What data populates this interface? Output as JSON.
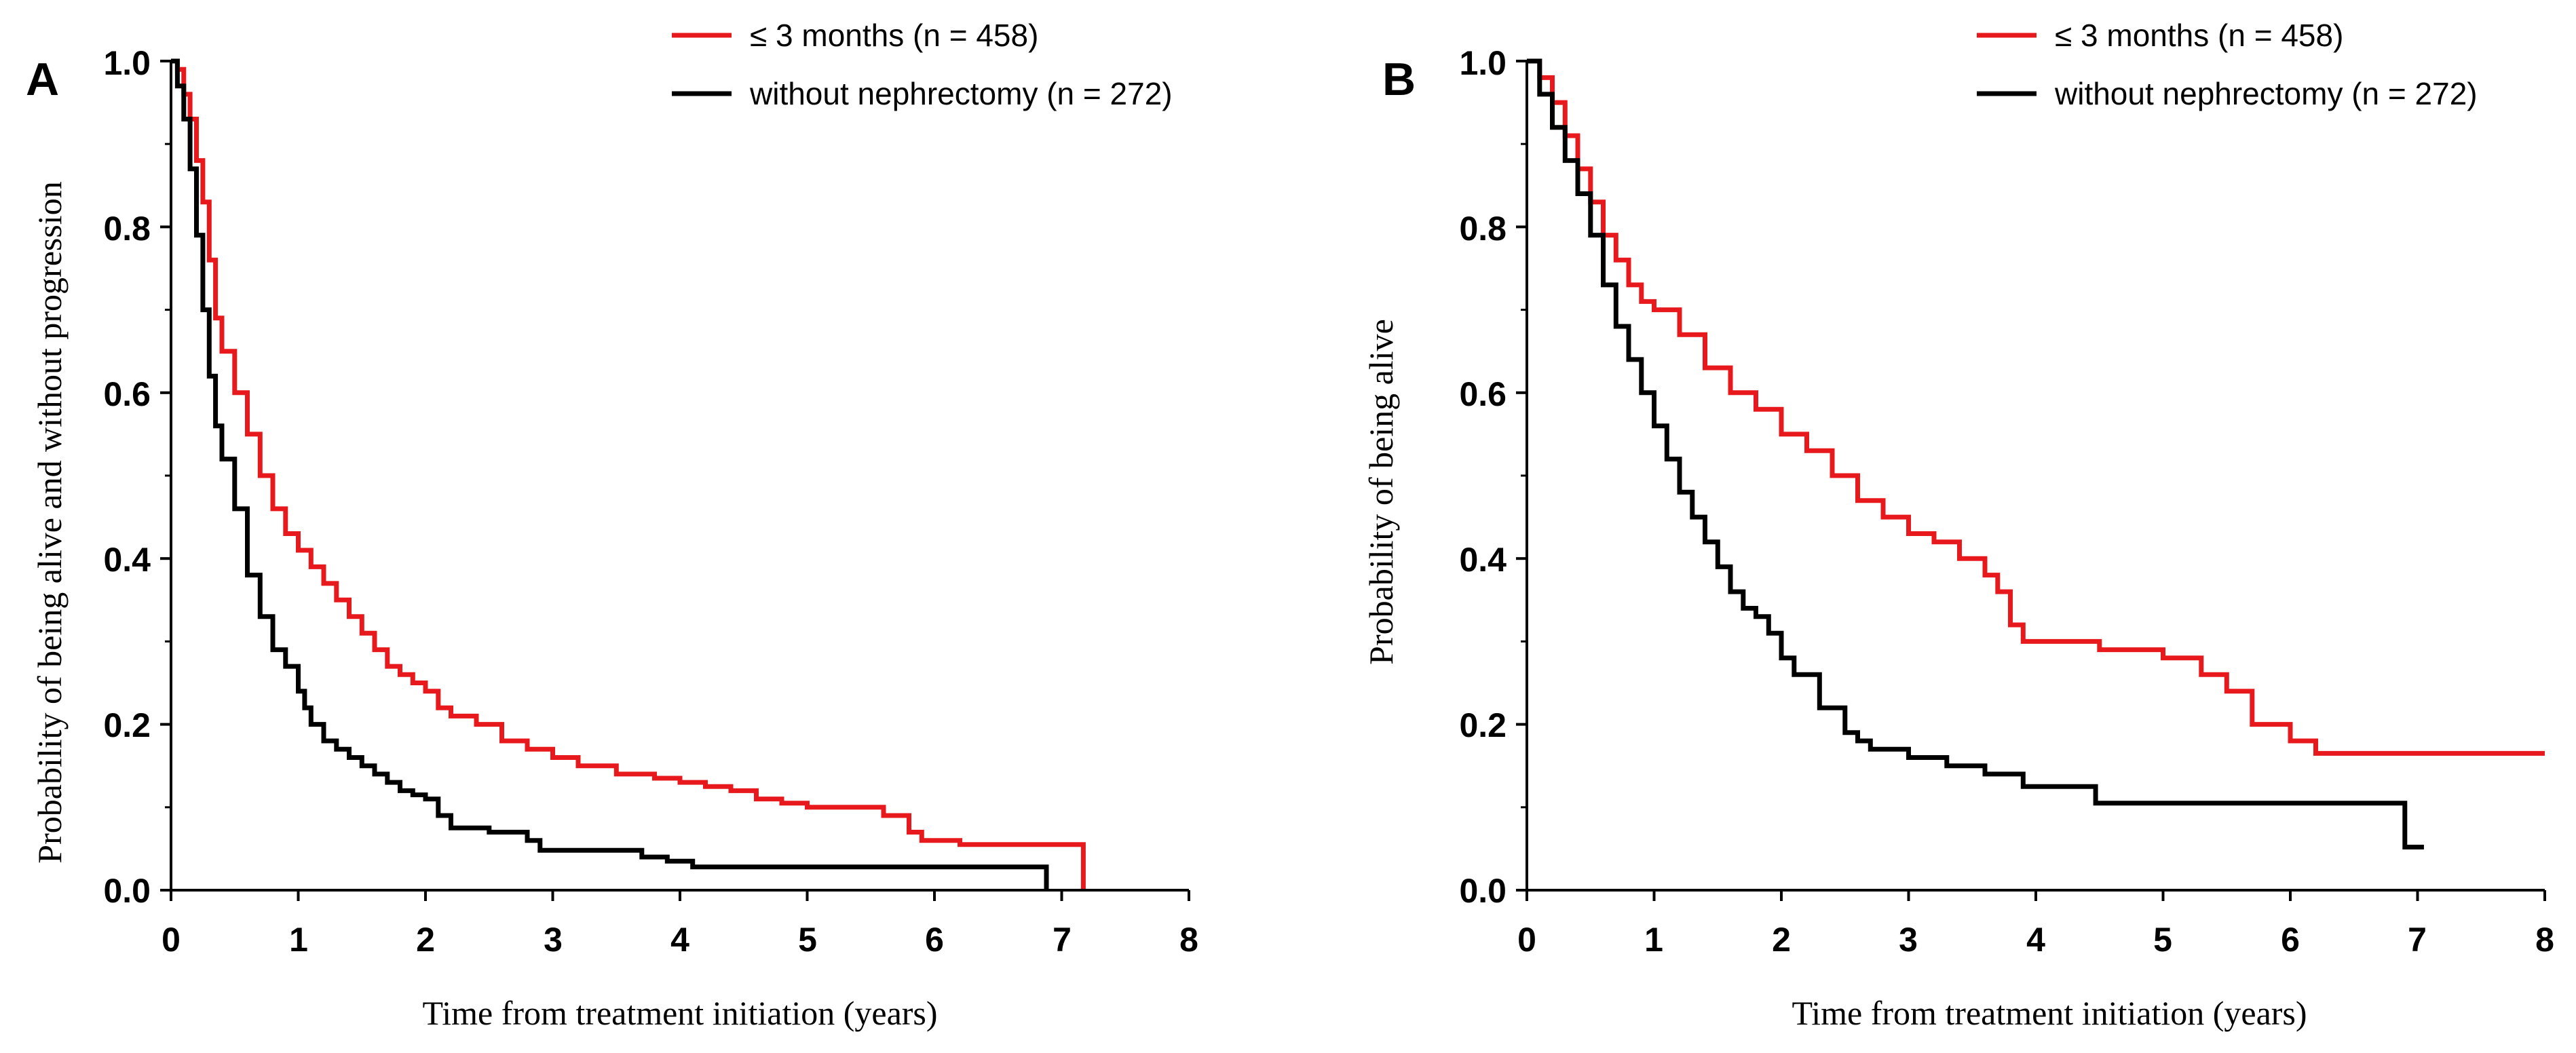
{
  "chart_data": [
    {
      "type": "line",
      "step": true,
      "panel_label": "A",
      "title": "",
      "xlabel": "Time from treatment initiation (years)",
      "ylabel": "Probability of being alive and without progression",
      "xlim": [
        0,
        8
      ],
      "ylim": [
        0,
        1
      ],
      "x_ticks": [
        "0",
        "1",
        "2",
        "3",
        "4",
        "5",
        "6",
        "7",
        "8"
      ],
      "y_ticks": [
        "0.0",
        "0.2",
        "0.4",
        "0.6",
        "0.8",
        "1.0"
      ],
      "grid": false,
      "legend_position": "top-right",
      "series": [
        {
          "name": "≤ 3 months (n = 458)",
          "color": "#e8191c",
          "x": [
            0,
            0.05,
            0.1,
            0.15,
            0.2,
            0.25,
            0.3,
            0.35,
            0.4,
            0.5,
            0.6,
            0.7,
            0.8,
            0.9,
            1.0,
            1.1,
            1.2,
            1.3,
            1.4,
            1.5,
            1.6,
            1.7,
            1.8,
            1.9,
            2.0,
            2.1,
            2.2,
            2.4,
            2.6,
            2.8,
            3.0,
            3.2,
            3.5,
            3.8,
            4.0,
            4.2,
            4.4,
            4.6,
            4.8,
            5.0,
            5.3,
            5.6,
            5.8,
            5.9,
            6.2,
            7.0,
            7.17,
            7.17
          ],
          "y": [
            1.0,
            0.99,
            0.96,
            0.93,
            0.88,
            0.83,
            0.76,
            0.69,
            0.65,
            0.6,
            0.55,
            0.5,
            0.46,
            0.43,
            0.41,
            0.39,
            0.37,
            0.35,
            0.33,
            0.31,
            0.29,
            0.27,
            0.26,
            0.25,
            0.24,
            0.22,
            0.21,
            0.2,
            0.18,
            0.17,
            0.16,
            0.15,
            0.14,
            0.135,
            0.13,
            0.125,
            0.12,
            0.11,
            0.105,
            0.1,
            0.1,
            0.09,
            0.07,
            0.06,
            0.055,
            0.055,
            0.055,
            0.0
          ]
        },
        {
          "name": "without nephrectomy (n = 272)",
          "color": "#000000",
          "x": [
            0,
            0.05,
            0.1,
            0.15,
            0.2,
            0.25,
            0.3,
            0.35,
            0.4,
            0.5,
            0.6,
            0.7,
            0.8,
            0.9,
            1.0,
            1.05,
            1.1,
            1.2,
            1.3,
            1.4,
            1.5,
            1.6,
            1.7,
            1.8,
            1.9,
            2.0,
            2.1,
            2.2,
            2.5,
            2.8,
            2.9,
            3.3,
            3.7,
            3.9,
            4.1,
            5.0,
            6.0,
            6.88,
            6.88
          ],
          "y": [
            1.0,
            0.97,
            0.93,
            0.87,
            0.79,
            0.7,
            0.62,
            0.56,
            0.52,
            0.46,
            0.38,
            0.33,
            0.29,
            0.27,
            0.24,
            0.22,
            0.2,
            0.18,
            0.17,
            0.16,
            0.15,
            0.14,
            0.13,
            0.12,
            0.115,
            0.11,
            0.09,
            0.075,
            0.07,
            0.06,
            0.048,
            0.048,
            0.04,
            0.035,
            0.028,
            0.028,
            0.028,
            0.028,
            0.0
          ]
        }
      ]
    },
    {
      "type": "line",
      "step": true,
      "panel_label": "B",
      "title": "",
      "xlabel": "Time from treatment initiation (years)",
      "ylabel": "Probability of being alive",
      "xlim": [
        0,
        8
      ],
      "ylim": [
        0,
        1
      ],
      "x_ticks": [
        "0",
        "1",
        "2",
        "3",
        "4",
        "5",
        "6",
        "7",
        "8"
      ],
      "y_ticks": [
        "0.0",
        "0.2",
        "0.4",
        "0.6",
        "0.8",
        "1.0"
      ],
      "grid": false,
      "legend_position": "top-right",
      "series": [
        {
          "name": "≤ 3 months (n = 458)",
          "color": "#e8191c",
          "x": [
            0,
            0.1,
            0.2,
            0.3,
            0.4,
            0.5,
            0.6,
            0.7,
            0.8,
            0.9,
            1.0,
            1.2,
            1.4,
            1.6,
            1.8,
            2.0,
            2.2,
            2.4,
            2.6,
            2.8,
            3.0,
            3.2,
            3.4,
            3.6,
            3.7,
            3.8,
            3.9,
            4.5,
            5.0,
            5.3,
            5.5,
            5.7,
            6.0,
            6.2,
            7.0,
            8.0
          ],
          "y": [
            1.0,
            0.98,
            0.95,
            0.91,
            0.87,
            0.83,
            0.79,
            0.76,
            0.73,
            0.71,
            0.7,
            0.67,
            0.63,
            0.6,
            0.58,
            0.55,
            0.53,
            0.5,
            0.47,
            0.45,
            0.43,
            0.42,
            0.4,
            0.38,
            0.36,
            0.32,
            0.3,
            0.29,
            0.28,
            0.26,
            0.24,
            0.2,
            0.18,
            0.165,
            0.165,
            0.165
          ]
        },
        {
          "name": "without nephrectomy (n = 272)",
          "color": "#000000",
          "x": [
            0,
            0.1,
            0.2,
            0.3,
            0.4,
            0.5,
            0.6,
            0.7,
            0.8,
            0.9,
            1.0,
            1.1,
            1.2,
            1.3,
            1.4,
            1.5,
            1.6,
            1.7,
            1.8,
            1.9,
            2.0,
            2.1,
            2.3,
            2.5,
            2.6,
            2.7,
            3.0,
            3.3,
            3.6,
            3.9,
            4.47,
            5.0,
            6.0,
            6.9,
            7.05
          ],
          "y": [
            1.0,
            0.96,
            0.92,
            0.88,
            0.84,
            0.79,
            0.73,
            0.68,
            0.64,
            0.6,
            0.56,
            0.52,
            0.48,
            0.45,
            0.42,
            0.39,
            0.36,
            0.34,
            0.33,
            0.31,
            0.28,
            0.26,
            0.22,
            0.19,
            0.18,
            0.17,
            0.16,
            0.15,
            0.14,
            0.125,
            0.105,
            0.105,
            0.105,
            0.052,
            0.052
          ]
        }
      ]
    }
  ]
}
